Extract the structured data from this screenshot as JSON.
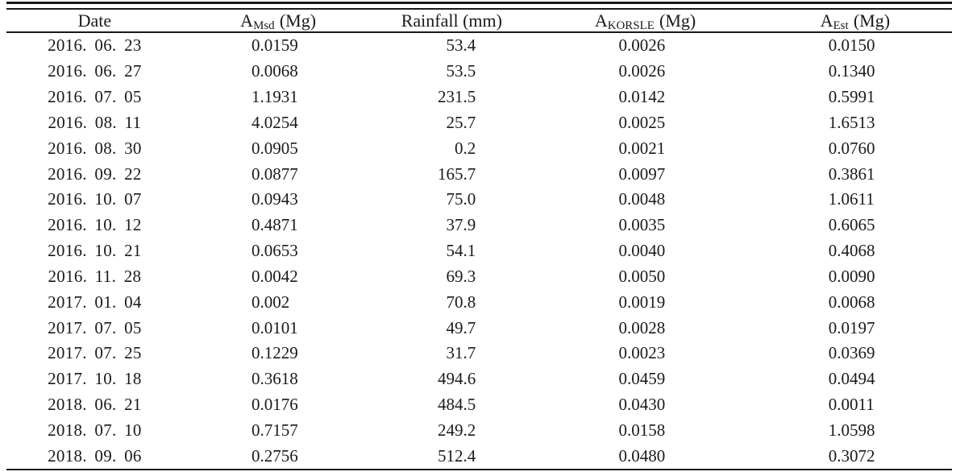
{
  "table": {
    "columns": [
      {
        "key": "date",
        "label": "Date"
      },
      {
        "key": "a_msd",
        "base": "A",
        "sub": "Msd",
        "unit": "(Mg)"
      },
      {
        "key": "rainfall",
        "label": "Rainfall (mm)"
      },
      {
        "key": "a_korsle",
        "base": "A",
        "sub": "KORSLE",
        "unit": "(Mg)"
      },
      {
        "key": "a_est",
        "base": "A",
        "sub": "Est",
        "unit": "(Mg)"
      }
    ],
    "rows": [
      {
        "date": "2016. 06. 23",
        "a_msd": "0.0159",
        "rainfall": "53.4",
        "a_korsle": "0.0026",
        "a_est": "0.0150"
      },
      {
        "date": "2016. 06. 27",
        "a_msd": "0.0068",
        "rainfall": "53.5",
        "a_korsle": "0.0026",
        "a_est": "0.1340"
      },
      {
        "date": "2016. 07. 05",
        "a_msd": "1.1931",
        "rainfall": "231.5",
        "a_korsle": "0.0142",
        "a_est": "0.5991"
      },
      {
        "date": "2016. 08. 11",
        "a_msd": "4.0254",
        "rainfall": "25.7",
        "a_korsle": "0.0025",
        "a_est": "1.6513"
      },
      {
        "date": "2016. 08. 30",
        "a_msd": "0.0905",
        "rainfall": "0.2",
        "a_korsle": "0.0021",
        "a_est": "0.0760"
      },
      {
        "date": "2016. 09. 22",
        "a_msd": "0.0877",
        "rainfall": "165.7",
        "a_korsle": "0.0097",
        "a_est": "0.3861"
      },
      {
        "date": "2016. 10. 07",
        "a_msd": "0.0943",
        "rainfall": "75.0",
        "a_korsle": "0.0048",
        "a_est": "1.0611"
      },
      {
        "date": "2016. 10. 12",
        "a_msd": "0.4871",
        "rainfall": "37.9",
        "a_korsle": "0.0035",
        "a_est": "0.6065"
      },
      {
        "date": "2016. 10. 21",
        "a_msd": "0.0653",
        "rainfall": "54.1",
        "a_korsle": "0.0040",
        "a_est": "0.4068"
      },
      {
        "date": "2016. 11. 28",
        "a_msd": "0.0042",
        "rainfall": "69.3",
        "a_korsle": "0.0050",
        "a_est": "0.0090"
      },
      {
        "date": "2017. 01. 04",
        "a_msd": "0.002",
        "rainfall": "70.8",
        "a_korsle": "0.0019",
        "a_est": "0.0068"
      },
      {
        "date": "2017. 07. 05",
        "a_msd": "0.0101",
        "rainfall": "49.7",
        "a_korsle": "0.0028",
        "a_est": "0.0197"
      },
      {
        "date": "2017. 07. 25",
        "a_msd": "0.1229",
        "rainfall": "31.7",
        "a_korsle": "0.0023",
        "a_est": "0.0369"
      },
      {
        "date": "2017. 10. 18",
        "a_msd": "0.3618",
        "rainfall": "494.6",
        "a_korsle": "0.0459",
        "a_est": "0.0494"
      },
      {
        "date": "2018. 06. 21",
        "a_msd": "0.0176",
        "rainfall": "484.5",
        "a_korsle": "0.0430",
        "a_est": "0.0011"
      },
      {
        "date": "2018. 07. 10",
        "a_msd": "0.7157",
        "rainfall": "249.2",
        "a_korsle": "0.0158",
        "a_est": "1.0598"
      },
      {
        "date": "2018. 09. 06",
        "a_msd": "0.2756",
        "rainfall": "512.4",
        "a_korsle": "0.0480",
        "a_est": "0.3072"
      }
    ],
    "text_color": "#1a1a1a",
    "background_color": "#ffffff"
  }
}
